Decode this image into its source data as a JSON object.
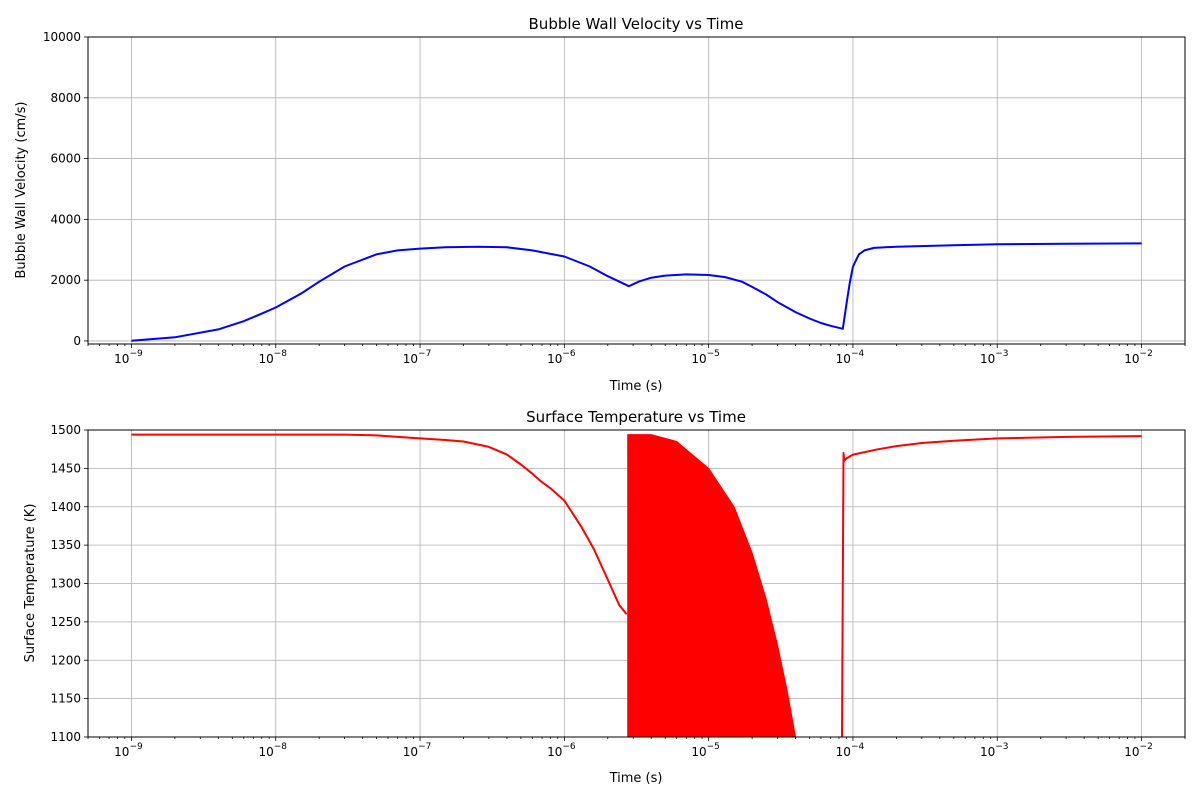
{
  "chart_data": [
    {
      "type": "line",
      "title": "Bubble Wall Velocity vs Time",
      "xlabel": "Time (s)",
      "ylabel": "Bubble Wall Velocity (cm/s)",
      "xscale": "log",
      "xlim": [
        5e-10,
        0.02
      ],
      "ylim": [
        -100,
        10000
      ],
      "grid": true,
      "x_ticks": [
        {
          "base": "10",
          "exp": "−9",
          "value": 1e-09
        },
        {
          "base": "10",
          "exp": "−8",
          "value": 1e-08
        },
        {
          "base": "10",
          "exp": "−7",
          "value": 1e-07
        },
        {
          "base": "10",
          "exp": "−6",
          "value": 1e-06
        },
        {
          "base": "10",
          "exp": "−5",
          "value": 1e-05
        },
        {
          "base": "10",
          "exp": "−4",
          "value": 0.0001
        },
        {
          "base": "10",
          "exp": "−3",
          "value": 0.001
        },
        {
          "base": "10",
          "exp": "−2",
          "value": 0.01
        }
      ],
      "y_ticks": [
        "0",
        "2000",
        "4000",
        "6000",
        "8000",
        "10000"
      ],
      "series": [
        {
          "color": "#0000ff",
          "points": [
            [
              1e-09,
              10
            ],
            [
              2e-09,
              120
            ],
            [
              4e-09,
              380
            ],
            [
              6e-09,
              650
            ],
            [
              8e-09,
              900
            ],
            [
              1e-08,
              1100
            ],
            [
              1.5e-08,
              1560
            ],
            [
              2e-08,
              1950
            ],
            [
              3e-08,
              2450
            ],
            [
              5e-08,
              2850
            ],
            [
              7e-08,
              2980
            ],
            [
              1e-07,
              3040
            ],
            [
              1.5e-07,
              3080
            ],
            [
              2.5e-07,
              3100
            ],
            [
              4e-07,
              3080
            ],
            [
              6e-07,
              2980
            ],
            [
              1e-06,
              2780
            ],
            [
              1.5e-06,
              2450
            ],
            [
              2e-06,
              2130
            ],
            [
              2.8e-06,
              1800
            ],
            [
              3.3e-06,
              1960
            ],
            [
              4e-06,
              2080
            ],
            [
              5e-06,
              2150
            ],
            [
              7e-06,
              2190
            ],
            [
              1e-05,
              2170
            ],
            [
              1.3e-05,
              2100
            ],
            [
              1.7e-05,
              1950
            ],
            [
              2e-05,
              1780
            ],
            [
              2.5e-05,
              1530
            ],
            [
              3e-05,
              1280
            ],
            [
              4e-05,
              950
            ],
            [
              5e-05,
              740
            ],
            [
              6e-05,
              590
            ],
            [
              7e-05,
              500
            ],
            [
              8.5e-05,
              400
            ],
            [
              9e-05,
              1200
            ],
            [
              9.5e-05,
              1900
            ],
            [
              0.0001,
              2450
            ],
            [
              0.00011,
              2850
            ],
            [
              0.00012,
              2980
            ],
            [
              0.00014,
              3060
            ],
            [
              0.0002,
              3100
            ],
            [
              0.0005,
              3150
            ],
            [
              0.001,
              3180
            ],
            [
              0.003,
              3200
            ],
            [
              0.01,
              3210
            ]
          ]
        }
      ]
    },
    {
      "type": "line",
      "title": "Surface Temperature vs Time",
      "xlabel": "Time (s)",
      "ylabel": "Surface Temperature (K)",
      "xscale": "log",
      "xlim": [
        5e-10,
        0.02
      ],
      "ylim": [
        1100,
        1500
      ],
      "grid": true,
      "x_ticks": [
        {
          "base": "10",
          "exp": "−9",
          "value": 1e-09
        },
        {
          "base": "10",
          "exp": "−8",
          "value": 1e-08
        },
        {
          "base": "10",
          "exp": "−7",
          "value": 1e-07
        },
        {
          "base": "10",
          "exp": "−6",
          "value": 1e-06
        },
        {
          "base": "10",
          "exp": "−5",
          "value": 1e-05
        },
        {
          "base": "10",
          "exp": "−4",
          "value": 0.0001
        },
        {
          "base": "10",
          "exp": "−3",
          "value": 0.001
        },
        {
          "base": "10",
          "exp": "−2",
          "value": 0.01
        }
      ],
      "y_ticks": [
        "1100",
        "1150",
        "1200",
        "1250",
        "1300",
        "1350",
        "1400",
        "1450",
        "1500"
      ],
      "series": [
        {
          "color": "#ff0000",
          "points": [
            [
              1e-09,
              1494
            ],
            [
              1e-08,
              1494
            ],
            [
              3e-08,
              1494
            ],
            [
              5e-08,
              1493
            ],
            [
              7e-08,
              1491
            ],
            [
              1e-07,
              1489
            ],
            [
              1.5e-07,
              1487
            ],
            [
              2e-07,
              1485
            ],
            [
              3e-07,
              1478
            ],
            [
              4e-07,
              1468
            ],
            [
              5e-07,
              1455
            ],
            [
              6e-07,
              1443
            ],
            [
              7e-07,
              1432
            ],
            [
              8e-07,
              1424
            ],
            [
              1e-06,
              1408
            ],
            [
              1.3e-06,
              1375
            ],
            [
              1.6e-06,
              1345
            ],
            [
              2e-06,
              1305
            ],
            [
              2.4e-06,
              1272
            ],
            [
              2.7e-06,
              1260
            ]
          ]
        },
        {
          "color": "#ff0000",
          "note_kind": "oscillation-band",
          "band": [
            [
              2.75e-06,
              1100,
              1494
            ],
            [
              4e-06,
              1100,
              1494
            ],
            [
              6e-06,
              1100,
              1485
            ],
            [
              1e-05,
              1100,
              1450
            ],
            [
              1.5e-05,
              1100,
              1400
            ],
            [
              2e-05,
              1100,
              1340
            ],
            [
              2.5e-05,
              1100,
              1280
            ],
            [
              3e-05,
              1100,
              1220
            ],
            [
              3.5e-05,
              1100,
              1160
            ],
            [
              4e-05,
              1100,
              1100
            ]
          ]
        },
        {
          "color": "#ff0000",
          "points": [
            [
              8.4e-05,
              1100
            ],
            [
              8.5e-05,
              1300
            ],
            [
              8.6e-05,
              1470
            ],
            [
              8.7e-05,
              1460
            ],
            [
              9e-05,
              1463
            ],
            [
              0.0001,
              1468
            ],
            [
              0.00015,
              1475
            ],
            [
              0.0002,
              1479
            ],
            [
              0.0003,
              1483
            ],
            [
              0.0005,
              1486
            ],
            [
              0.001,
              1489
            ],
            [
              0.003,
              1491
            ],
            [
              0.01,
              1492
            ]
          ]
        }
      ]
    }
  ]
}
